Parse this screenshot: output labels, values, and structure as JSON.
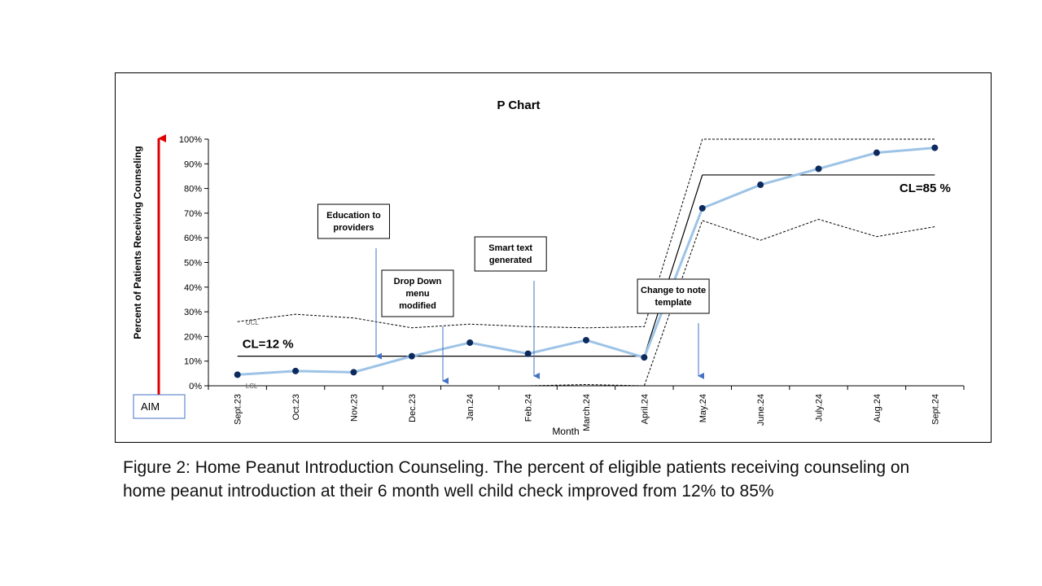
{
  "chart_data": {
    "type": "line",
    "title": "P Chart",
    "xlabel": "Month",
    "ylabel": "Percent of Patients Receiving Counseling",
    "ylim": [
      0,
      100
    ],
    "y_ticks": [
      "0%",
      "10%",
      "20%",
      "30%",
      "40%",
      "50%",
      "60%",
      "70%",
      "80%",
      "90%",
      "100%"
    ],
    "categories": [
      "Sept.23",
      "Oct.23",
      "Nov.23",
      "Dec.23",
      "Jan.24",
      "Feb.24",
      "March.24",
      "April.24",
      "May.24",
      "June.24",
      "July.24",
      "Aug.24",
      "Sept.24"
    ],
    "series": [
      {
        "name": "",
        "values": [
          4.5,
          6,
          5.5,
          12,
          17.5,
          13,
          18.5,
          11.5,
          72,
          81.5,
          88,
          94.5,
          96.5
        ],
        "color": "#9dc3e6",
        "marker_color": "#0d2a5e"
      }
    ],
    "control_lines": {
      "ucl_label": "UCL",
      "lcl_label": "LCL",
      "ucl": [
        26,
        29,
        27.5,
        23.5,
        25,
        24,
        23.5,
        24,
        100,
        100,
        100,
        100,
        100
      ],
      "lcl": [
        0,
        0,
        0,
        0,
        0,
        0,
        0.5,
        0,
        67,
        59,
        67.5,
        60.5,
        64.5
      ],
      "center_lines": [
        {
          "label": "CL=12 %",
          "value": 12,
          "from": 0,
          "to": 7
        },
        {
          "label": "CL=85 %",
          "value": 85.5,
          "from": 8,
          "to": 12
        }
      ]
    },
    "annotations": [
      {
        "text_lines": [
          "Education to",
          "providers"
        ],
        "category": 2.5,
        "arrow_to": 12
      },
      {
        "text_lines": [
          "Drop Down",
          "menu",
          "modified"
        ],
        "category": 3.6,
        "arrow_to": 2
      },
      {
        "text_lines": [
          "Smart text",
          "generated"
        ],
        "category": 5.2,
        "arrow_to": 4
      },
      {
        "text_lines": [
          "Change to note",
          "template"
        ],
        "category": 8,
        "arrow_to": 4
      }
    ],
    "aim_label": "AIM",
    "grid": false
  },
  "caption": {
    "line1": "Figure 2: Home Peanut Introduction Counseling. The percent of eligible patients receiving counseling on",
    "line2": "home peanut introduction at their 6 month well child check improved from 12% to 85%"
  }
}
